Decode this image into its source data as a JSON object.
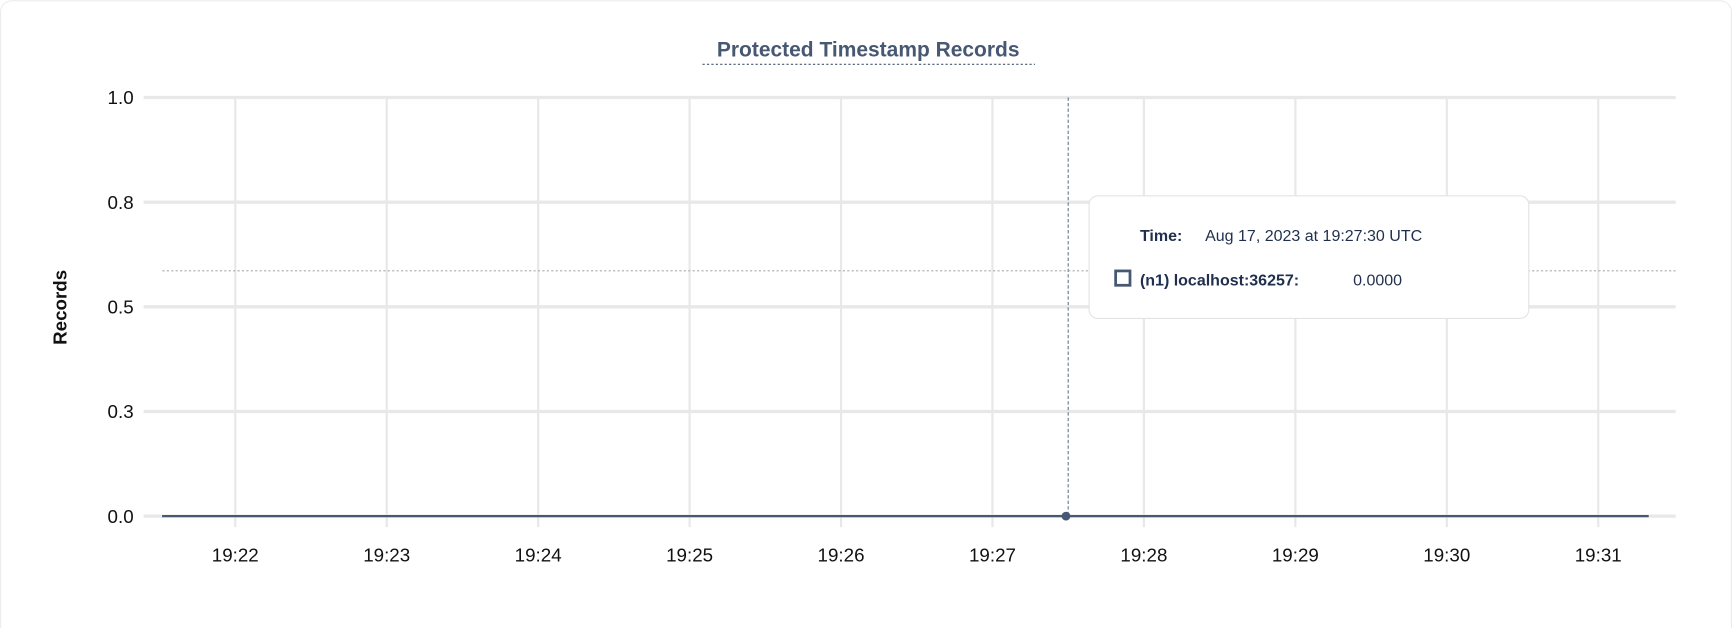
{
  "chart_data": {
    "type": "line",
    "title": "Protected Timestamp Records",
    "xlabel": "",
    "ylabel": "Records",
    "ylim": [
      0,
      1
    ],
    "yticks": [
      0,
      0.25,
      0.5,
      0.75,
      1.0
    ],
    "ytick_labels": [
      "0.0",
      "0.3",
      "0.5",
      "0.8",
      "1.0"
    ],
    "xlim": [
      "19:21:31",
      "19:31:20"
    ],
    "xtick_labels": [
      "19:22",
      "19:23",
      "19:24",
      "19:25",
      "19:26",
      "19:27",
      "19:28",
      "19:29",
      "19:30",
      "19:31"
    ],
    "grid": true,
    "series": [
      {
        "name": "(n1) localhost:36257",
        "color": "#475872",
        "x": [
          "19:21:31",
          "19:31:20"
        ],
        "y": [
          0,
          0
        ]
      }
    ],
    "hover": {
      "time_x": "19:27:30",
      "cursor_y": 0.586
    },
    "tooltip": {
      "time_label": "Time:",
      "time_value": "Aug 17, 2023 at 19:27:30 UTC",
      "series_label": "(n1) localhost:36257:",
      "series_value": "0.0000"
    }
  }
}
